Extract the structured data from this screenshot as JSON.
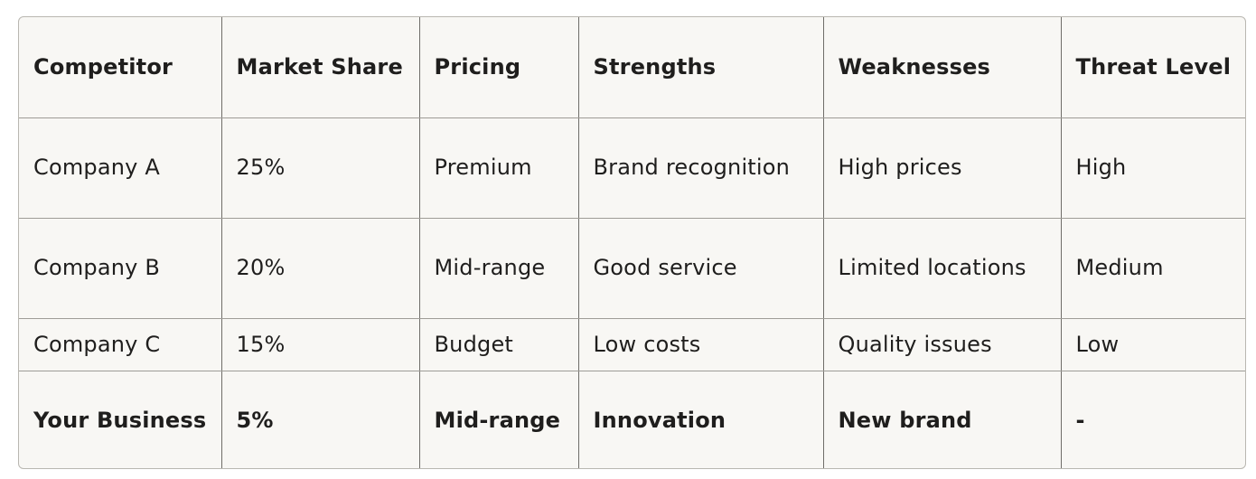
{
  "table": {
    "headers": [
      "Competitor",
      "Market Share",
      "Pricing",
      "Strengths",
      "Weaknesses",
      "Threat Level"
    ],
    "rows": [
      [
        "Company A",
        "25%",
        "Premium",
        "Brand recognition",
        "High prices",
        "High"
      ],
      [
        "Company B",
        "20%",
        "Mid-range",
        "Good service",
        "Limited locations",
        "Medium"
      ],
      [
        "Company C",
        "15%",
        "Budget",
        "Low costs",
        "Quality issues",
        "Low"
      ],
      [
        "Your Business",
        "5%",
        "Mid-range",
        "Innovation",
        "New brand",
        "-"
      ]
    ],
    "bold_last_row": true
  }
}
